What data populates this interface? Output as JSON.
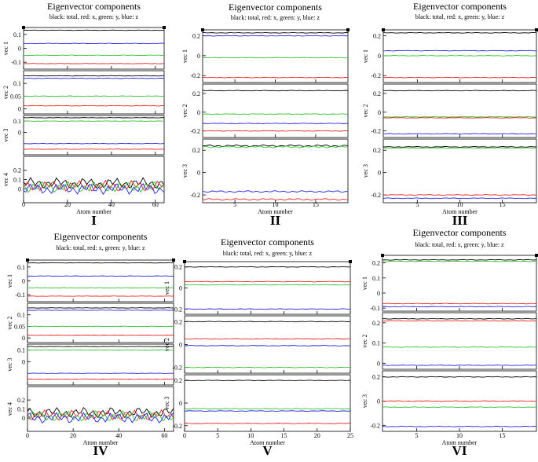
{
  "figure": {
    "legend_text": "black: total, red: x, green: y, blue: z",
    "series_colors": {
      "total": "#000000",
      "x": "#e8231f",
      "y": "#2fc42f",
      "z": "#2222e0"
    }
  },
  "chart_data": [
    {
      "id": "I",
      "type": "line",
      "title": "Eigenvector components",
      "subtitle": "black: total, red: x, green: y, blue: z",
      "label": "I",
      "xlabel": "Atom number",
      "xlim": [
        0,
        64
      ],
      "xticks": [
        0,
        20,
        40,
        60
      ],
      "panels": [
        {
          "ylabel": "vec 1",
          "ylim": [
            -0.15,
            0.15
          ],
          "yticks": [
            -0.1,
            0,
            0.1
          ],
          "series": [
            {
              "name": "total",
              "value": 0.13
            },
            {
              "name": "z",
              "value": 0.035
            },
            {
              "name": "y",
              "value": -0.05
            },
            {
              "name": "x",
              "value": -0.11
            }
          ]
        },
        {
          "ylabel": "vec 2",
          "ylim": [
            -0.02,
            0.15
          ],
          "yticks": [
            0,
            0.05,
            0.1
          ],
          "series": [
            {
              "name": "total",
              "value": 0.13
            },
            {
              "name": "z",
              "value": 0.12
            },
            {
              "name": "y",
              "value": 0.05
            },
            {
              "name": "x",
              "value": 0.012
            }
          ]
        },
        {
          "ylabel": "vec 3",
          "ylim": [
            -0.2,
            0.15
          ],
          "yticks": [
            0,
            0.1
          ],
          "series": [
            {
              "name": "total",
              "value": 0.13
            },
            {
              "name": "y",
              "value": 0.1
            },
            {
              "name": "z",
              "value": -0.1
            },
            {
              "name": "x",
              "value": -0.15
            }
          ]
        },
        {
          "ylabel": "vec 4",
          "ylim": [
            -0.15,
            0.35
          ],
          "yticks": [
            0,
            0.1,
            0.2
          ],
          "series": [
            {
              "name": "total",
              "value": 0.06
            },
            {
              "name": "x",
              "value": 0.03
            },
            {
              "name": "y",
              "value": 0.02
            },
            {
              "name": "z",
              "value": 0.0
            }
          ]
        }
      ]
    },
    {
      "id": "II",
      "type": "line",
      "title": "Eigenvector components",
      "subtitle": "black: total, red: x, green: y, blue: z",
      "label": "II",
      "xlabel": "Atom number",
      "xlim": [
        1,
        19
      ],
      "xticks": [
        5,
        10,
        15
      ],
      "panels": [
        {
          "ylabel": "vec 1",
          "ylim": [
            -0.27,
            0.26
          ],
          "yticks": [
            -0.2,
            0,
            0.2
          ],
          "series": [
            {
              "name": "total",
              "value": 0.23
            },
            {
              "name": "z",
              "value": 0.2
            },
            {
              "name": "y",
              "value": -0.02
            },
            {
              "name": "x",
              "value": -0.22
            }
          ]
        },
        {
          "ylabel": "vec 2",
          "ylim": [
            -0.27,
            0.3
          ],
          "yticks": [
            -0.2,
            0,
            0.2
          ],
          "series": [
            {
              "name": "total",
              "value": 0.23
            },
            {
              "name": "y",
              "value": -0.02
            },
            {
              "name": "z",
              "value": -0.12
            },
            {
              "name": "x",
              "value": -0.2
            }
          ]
        },
        {
          "ylabel": "vec 3",
          "ylim": [
            -0.27,
            0.3
          ],
          "yticks": [
            -0.2,
            0,
            0.2
          ],
          "series": [
            {
              "name": "total",
              "value": 0.24
            },
            {
              "name": "y",
              "value": 0.23
            },
            {
              "name": "z",
              "value": -0.17
            },
            {
              "name": "x",
              "value": -0.24
            }
          ]
        }
      ]
    },
    {
      "id": "III",
      "type": "line",
      "title": "Eigenvector components",
      "subtitle": "black: total, red: x, green: y, blue: z",
      "label": "III",
      "xlabel": "Atom number",
      "xlim": [
        1,
        19
      ],
      "xticks": [
        5,
        10,
        15
      ],
      "panels": [
        {
          "ylabel": "vec 1",
          "ylim": [
            -0.27,
            0.26
          ],
          "yticks": [
            -0.2,
            0,
            0.2
          ],
          "series": [
            {
              "name": "total",
              "value": 0.23
            },
            {
              "name": "z",
              "value": 0.05
            },
            {
              "name": "y",
              "value": 0.0
            },
            {
              "name": "x",
              "value": -0.22
            }
          ]
        },
        {
          "ylabel": "vec 2",
          "ylim": [
            -0.27,
            0.3
          ],
          "yticks": [
            -0.2,
            0,
            0.2
          ],
          "series": [
            {
              "name": "total",
              "value": 0.23
            },
            {
              "name": "y",
              "value": -0.05
            },
            {
              "name": "x",
              "value": -0.06
            },
            {
              "name": "z",
              "value": -0.23
            }
          ]
        },
        {
          "ylabel": "vec 3",
          "ylim": [
            -0.27,
            0.3
          ],
          "yticks": [
            -0.2,
            0,
            0.2
          ],
          "series": [
            {
              "name": "total",
              "value": 0.23
            },
            {
              "name": "y",
              "value": 0.22
            },
            {
              "name": "x",
              "value": -0.2
            },
            {
              "name": "z",
              "value": -0.23
            }
          ]
        }
      ]
    },
    {
      "id": "IV",
      "type": "line",
      "title": "Eigenvector components",
      "subtitle": "black: total, red: x, green: y, blue: z",
      "label": "IV",
      "xlabel": "Atom number",
      "xlim": [
        0,
        64
      ],
      "xticks": [
        0,
        20,
        40,
        60
      ],
      "panels": [
        {
          "ylabel": "vec 1",
          "ylim": [
            -0.15,
            0.15
          ],
          "yticks": [
            -0.1,
            0,
            0.1
          ],
          "series": [
            {
              "name": "total",
              "value": 0.13
            },
            {
              "name": "z",
              "value": 0.035
            },
            {
              "name": "y",
              "value": -0.05
            },
            {
              "name": "x",
              "value": -0.11
            }
          ]
        },
        {
          "ylabel": "vec 2",
          "ylim": [
            -0.02,
            0.15
          ],
          "yticks": [
            0,
            0.05,
            0.1
          ],
          "series": [
            {
              "name": "total",
              "value": 0.13
            },
            {
              "name": "z",
              "value": 0.12
            },
            {
              "name": "y",
              "value": 0.05
            },
            {
              "name": "x",
              "value": 0.012
            }
          ]
        },
        {
          "ylabel": "vec 3",
          "ylim": [
            -0.2,
            0.15
          ],
          "yticks": [
            0,
            0.1
          ],
          "series": [
            {
              "name": "total",
              "value": 0.13
            },
            {
              "name": "y",
              "value": 0.1
            },
            {
              "name": "z",
              "value": -0.1
            },
            {
              "name": "x",
              "value": -0.15
            }
          ]
        },
        {
          "ylabel": "vec 4",
          "ylim": [
            -0.15,
            0.35
          ],
          "yticks": [
            0,
            0.1,
            0.2
          ],
          "series": [
            {
              "name": "total",
              "value": 0.06
            },
            {
              "name": "x",
              "value": 0.03
            },
            {
              "name": "y",
              "value": 0.02
            },
            {
              "name": "z",
              "value": 0.0
            }
          ]
        }
      ]
    },
    {
      "id": "V",
      "type": "line",
      "title": "Eigenvector components",
      "subtitle": "black: total, red: x, green: y, blue: z",
      "label": "V",
      "xlabel": "Atom number",
      "xlim": [
        0,
        25
      ],
      "xticks": [
        0,
        5,
        10,
        15,
        20,
        25
      ],
      "panels": [
        {
          "ylabel": "vec 1",
          "ylim": [
            -0.25,
            0.25
          ],
          "yticks": [
            -0.2,
            0,
            0.2
          ],
          "series": [
            {
              "name": "total",
              "value": 0.2
            },
            {
              "name": "x",
              "value": 0.06
            },
            {
              "name": "y",
              "value": 0.03
            },
            {
              "name": "z",
              "value": -0.2
            }
          ]
        },
        {
          "ylabel": "vec 2",
          "ylim": [
            -0.25,
            0.25
          ],
          "yticks": [
            -0.2,
            0,
            0.2
          ],
          "series": [
            {
              "name": "total",
              "value": 0.2
            },
            {
              "name": "x",
              "value": 0.05
            },
            {
              "name": "z",
              "value": -0.01
            },
            {
              "name": "y",
              "value": -0.2
            }
          ]
        },
        {
          "ylabel": "vec 3",
          "ylim": [
            -0.25,
            0.25
          ],
          "yticks": [
            -0.2,
            0,
            0.2
          ],
          "series": [
            {
              "name": "total",
              "value": 0.2
            },
            {
              "name": "y",
              "value": -0.05
            },
            {
              "name": "z",
              "value": -0.07
            },
            {
              "name": "x",
              "value": -0.18
            }
          ]
        }
      ]
    },
    {
      "id": "VI",
      "type": "line",
      "title": "Eigenvector components",
      "subtitle": "black: total, red: x, green: y, blue: z",
      "label": "VI",
      "xlabel": "Atom number",
      "xlim": [
        1,
        19
      ],
      "xticks": [
        5,
        10,
        15
      ],
      "panels": [
        {
          "ylabel": "vec 1",
          "ylim": [
            -0.12,
            0.25
          ],
          "yticks": [
            -0.1,
            0,
            0.1,
            0.2
          ],
          "series": [
            {
              "name": "total",
              "value": 0.22
            },
            {
              "name": "y",
              "value": 0.21
            },
            {
              "name": "x",
              "value": -0.07
            },
            {
              "name": "z",
              "value": -0.09
            }
          ]
        },
        {
          "ylabel": "vec 2",
          "ylim": [
            -0.03,
            0.25
          ],
          "yticks": [
            0,
            0.1,
            0.2
          ],
          "series": [
            {
              "name": "total",
              "value": 0.22
            },
            {
              "name": "x",
              "value": 0.21
            },
            {
              "name": "y",
              "value": 0.08
            },
            {
              "name": "z",
              "value": -0.01
            }
          ]
        },
        {
          "ylabel": "vec 3",
          "ylim": [
            -0.25,
            0.25
          ],
          "yticks": [
            -0.2,
            0,
            0.2
          ],
          "series": [
            {
              "name": "total",
              "value": 0.2
            },
            {
              "name": "x",
              "value": 0.0
            },
            {
              "name": "y",
              "value": -0.05
            },
            {
              "name": "z",
              "value": -0.21
            }
          ]
        }
      ]
    }
  ]
}
